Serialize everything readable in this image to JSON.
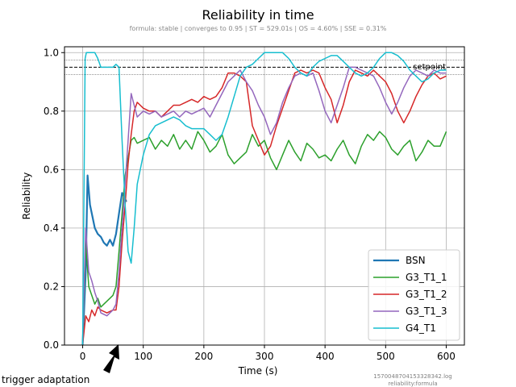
{
  "chart_data": {
    "type": "line",
    "title": "Reliability in time",
    "subtitle": "formula: stable | converges to 0.95 | ST = 529.01s | OS = 4.60% | SSE = 0.31%",
    "xlabel": "Time (s)",
    "ylabel": "Reliability",
    "xlim": [
      -30,
      630
    ],
    "ylim": [
      0.0,
      1.02
    ],
    "xticks": [
      0,
      100,
      200,
      300,
      400,
      500,
      600
    ],
    "yticks": [
      0.0,
      0.2,
      0.4,
      0.6,
      0.8,
      1.0
    ],
    "xtick_labels": [
      "0",
      "100",
      "200",
      "300",
      "400",
      "500",
      "600"
    ],
    "ytick_labels": [
      "0.0",
      "0.2",
      "0.4",
      "0.6",
      "0.8",
      "1.0"
    ],
    "grid": true,
    "legend_position": "bottom-right",
    "setpoint": {
      "value": 0.95,
      "label": "setpoint",
      "upper": 0.975,
      "lower": 0.925
    },
    "annotation": {
      "text": "trigger adaptation",
      "x": 58
    },
    "footnote": [
      "1570048704153328342.log",
      "reliability:formula"
    ],
    "series": [
      {
        "name": "BSN",
        "color": "#1f77b4",
        "width": 2.2,
        "x": [
          0,
          5,
          8,
          12,
          16,
          20,
          25,
          30,
          35,
          40,
          45,
          50,
          55,
          60,
          65,
          70,
          72
        ],
        "y": [
          0.0,
          0.25,
          0.58,
          0.48,
          0.44,
          0.4,
          0.38,
          0.37,
          0.35,
          0.34,
          0.36,
          0.34,
          0.38,
          0.45,
          0.52,
          0.5,
          0.49
        ]
      },
      {
        "name": "G3_T1_1",
        "color": "#2ca02c",
        "width": 1.5,
        "x": [
          0,
          5,
          10,
          15,
          20,
          25,
          30,
          40,
          50,
          55,
          60,
          65,
          70,
          75,
          80,
          85,
          90,
          100,
          110,
          120,
          130,
          140,
          150,
          160,
          170,
          180,
          190,
          200,
          210,
          220,
          230,
          240,
          250,
          260,
          270,
          280,
          290,
          300,
          310,
          320,
          330,
          340,
          350,
          360,
          370,
          380,
          390,
          400,
          410,
          420,
          430,
          440,
          450,
          460,
          470,
          480,
          490,
          500,
          510,
          520,
          530,
          540,
          550,
          560,
          570,
          580,
          590,
          600
        ],
        "y": [
          0.0,
          0.35,
          0.2,
          0.17,
          0.14,
          0.16,
          0.13,
          0.15,
          0.17,
          0.2,
          0.32,
          0.45,
          0.58,
          0.64,
          0.7,
          0.71,
          0.69,
          0.7,
          0.71,
          0.67,
          0.7,
          0.68,
          0.72,
          0.67,
          0.7,
          0.67,
          0.73,
          0.7,
          0.66,
          0.68,
          0.72,
          0.65,
          0.62,
          0.64,
          0.66,
          0.72,
          0.68,
          0.7,
          0.64,
          0.6,
          0.65,
          0.7,
          0.66,
          0.63,
          0.69,
          0.67,
          0.64,
          0.65,
          0.63,
          0.67,
          0.7,
          0.65,
          0.62,
          0.68,
          0.72,
          0.7,
          0.73,
          0.71,
          0.67,
          0.65,
          0.68,
          0.7,
          0.63,
          0.66,
          0.7,
          0.68,
          0.68,
          0.73
        ]
      },
      {
        "name": "G3_T1_2",
        "color": "#d62728",
        "width": 1.5,
        "x": [
          0,
          5,
          10,
          15,
          20,
          25,
          30,
          40,
          50,
          55,
          60,
          65,
          70,
          75,
          80,
          85,
          90,
          100,
          110,
          120,
          130,
          140,
          150,
          160,
          170,
          180,
          190,
          200,
          210,
          220,
          230,
          240,
          250,
          260,
          270,
          280,
          290,
          300,
          310,
          320,
          330,
          340,
          350,
          360,
          370,
          380,
          390,
          400,
          410,
          420,
          430,
          440,
          450,
          460,
          470,
          480,
          490,
          500,
          510,
          520,
          530,
          540,
          550,
          560,
          570,
          580,
          590,
          600
        ],
        "y": [
          0.0,
          0.1,
          0.08,
          0.12,
          0.1,
          0.13,
          0.12,
          0.11,
          0.12,
          0.12,
          0.2,
          0.35,
          0.48,
          0.62,
          0.72,
          0.8,
          0.83,
          0.81,
          0.8,
          0.8,
          0.78,
          0.8,
          0.82,
          0.82,
          0.83,
          0.84,
          0.83,
          0.85,
          0.84,
          0.85,
          0.88,
          0.93,
          0.93,
          0.92,
          0.9,
          0.75,
          0.7,
          0.65,
          0.68,
          0.75,
          0.81,
          0.87,
          0.93,
          0.94,
          0.93,
          0.94,
          0.93,
          0.88,
          0.84,
          0.76,
          0.82,
          0.9,
          0.94,
          0.93,
          0.92,
          0.94,
          0.92,
          0.9,
          0.86,
          0.8,
          0.76,
          0.8,
          0.85,
          0.89,
          0.92,
          0.93,
          0.91,
          0.92
        ]
      },
      {
        "name": "G3_T1_3",
        "color": "#9467bd",
        "width": 1.5,
        "x": [
          0,
          5,
          10,
          15,
          20,
          25,
          30,
          40,
          50,
          55,
          60,
          65,
          70,
          75,
          80,
          85,
          90,
          100,
          110,
          120,
          130,
          140,
          150,
          160,
          170,
          180,
          190,
          200,
          210,
          220,
          230,
          240,
          250,
          260,
          270,
          280,
          290,
          300,
          310,
          320,
          330,
          340,
          350,
          360,
          370,
          380,
          390,
          400,
          410,
          420,
          430,
          440,
          450,
          460,
          470,
          480,
          490,
          500,
          510,
          520,
          530,
          540,
          550,
          560,
          570,
          580,
          590,
          600
        ],
        "y": [
          0.0,
          0.4,
          0.25,
          0.22,
          0.18,
          0.15,
          0.11,
          0.1,
          0.12,
          0.14,
          0.25,
          0.4,
          0.55,
          0.7,
          0.86,
          0.82,
          0.78,
          0.8,
          0.79,
          0.8,
          0.78,
          0.79,
          0.8,
          0.78,
          0.8,
          0.79,
          0.8,
          0.81,
          0.78,
          0.82,
          0.86,
          0.9,
          0.92,
          0.94,
          0.9,
          0.87,
          0.82,
          0.78,
          0.72,
          0.76,
          0.83,
          0.88,
          0.92,
          0.93,
          0.92,
          0.93,
          0.87,
          0.8,
          0.76,
          0.82,
          0.88,
          0.95,
          0.95,
          0.94,
          0.93,
          0.92,
          0.88,
          0.83,
          0.79,
          0.83,
          0.88,
          0.92,
          0.94,
          0.93,
          0.92,
          0.94,
          0.93,
          0.93
        ]
      },
      {
        "name": "G4_T1",
        "color": "#17becf",
        "width": 1.5,
        "x": [
          0,
          4,
          6,
          10,
          15,
          20,
          25,
          30,
          35,
          40,
          45,
          50,
          55,
          60,
          65,
          70,
          75,
          80,
          85,
          90,
          100,
          110,
          120,
          130,
          140,
          150,
          160,
          170,
          180,
          190,
          200,
          210,
          220,
          230,
          240,
          250,
          260,
          270,
          280,
          290,
          300,
          310,
          320,
          330,
          340,
          350,
          360,
          370,
          380,
          390,
          400,
          410,
          420,
          430,
          440,
          450,
          460,
          470,
          480,
          490,
          500,
          510,
          520,
          530,
          540,
          550,
          560,
          570,
          580,
          590,
          600
        ],
        "y": [
          0.0,
          0.98,
          1.0,
          1.0,
          1.0,
          1.0,
          0.98,
          0.95,
          0.95,
          0.95,
          0.95,
          0.95,
          0.96,
          0.95,
          0.7,
          0.48,
          0.32,
          0.28,
          0.4,
          0.55,
          0.65,
          0.72,
          0.75,
          0.76,
          0.77,
          0.78,
          0.77,
          0.75,
          0.74,
          0.74,
          0.74,
          0.72,
          0.7,
          0.72,
          0.78,
          0.85,
          0.92,
          0.95,
          0.96,
          0.98,
          1.0,
          1.0,
          1.0,
          1.0,
          0.98,
          0.95,
          0.93,
          0.92,
          0.95,
          0.97,
          0.98,
          0.99,
          0.99,
          0.97,
          0.95,
          0.93,
          0.92,
          0.93,
          0.95,
          0.98,
          1.0,
          1.0,
          0.99,
          0.97,
          0.94,
          0.92,
          0.9,
          0.91,
          0.93,
          0.94,
          0.94
        ]
      }
    ]
  }
}
